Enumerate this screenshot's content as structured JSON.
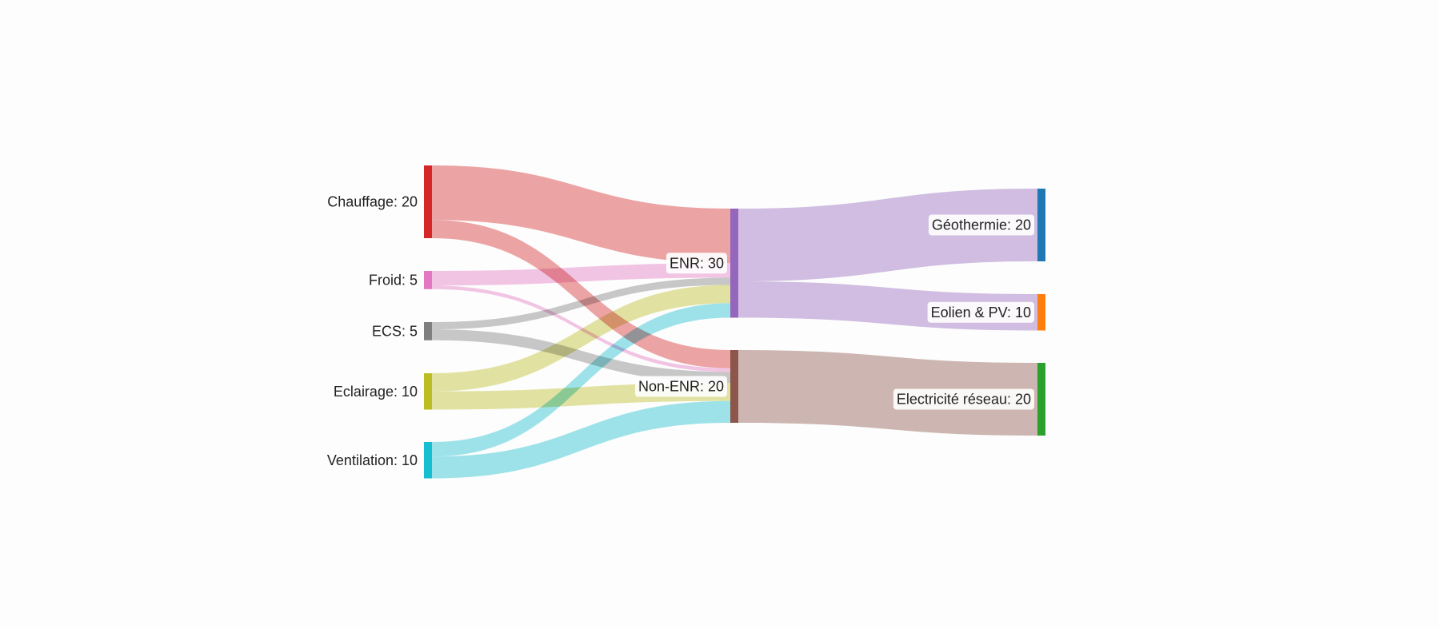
{
  "chart_data": {
    "type": "sankey",
    "nodes": [
      {
        "id": "chauffage",
        "label": "Chauffage: 20",
        "value": 20,
        "color": "#d62728"
      },
      {
        "id": "froid",
        "label": "Froid: 5",
        "value": 5,
        "color": "#e377c2"
      },
      {
        "id": "ecs",
        "label": "ECS: 5",
        "value": 5,
        "color": "#7f7f7f"
      },
      {
        "id": "eclairage",
        "label": "Eclairage: 10",
        "value": 10,
        "color": "#bcbd22"
      },
      {
        "id": "ventilation",
        "label": "Ventilation: 10",
        "value": 10,
        "color": "#17becf"
      },
      {
        "id": "enr",
        "label": "ENR: 30",
        "value": 30,
        "color": "#9467bd"
      },
      {
        "id": "nonenr",
        "label": "Non-ENR: 20",
        "value": 20,
        "color": "#8c564b"
      },
      {
        "id": "geothermie",
        "label": "Géothermie: 20",
        "value": 20,
        "color": "#1f77b4"
      },
      {
        "id": "eolien",
        "label": "Eolien & PV: 10",
        "value": 10,
        "color": "#ff7f0e"
      },
      {
        "id": "electricite",
        "label": "Electricité réseau: 20",
        "value": 20,
        "color": "#2ca02c"
      }
    ],
    "links": [
      {
        "source": "chauffage",
        "target": "enr",
        "value": 15
      },
      {
        "source": "chauffage",
        "target": "nonenr",
        "value": 5
      },
      {
        "source": "froid",
        "target": "enr",
        "value": 4
      },
      {
        "source": "froid",
        "target": "nonenr",
        "value": 1
      },
      {
        "source": "ecs",
        "target": "enr",
        "value": 2
      },
      {
        "source": "ecs",
        "target": "nonenr",
        "value": 3
      },
      {
        "source": "eclairage",
        "target": "enr",
        "value": 5
      },
      {
        "source": "eclairage",
        "target": "nonenr",
        "value": 5
      },
      {
        "source": "ventilation",
        "target": "enr",
        "value": 4
      },
      {
        "source": "ventilation",
        "target": "nonenr",
        "value": 6
      },
      {
        "source": "enr",
        "target": "geothermie",
        "value": 20
      },
      {
        "source": "enr",
        "target": "eolien",
        "value": 10
      },
      {
        "source": "nonenr",
        "target": "electricite",
        "value": 20
      }
    ]
  }
}
